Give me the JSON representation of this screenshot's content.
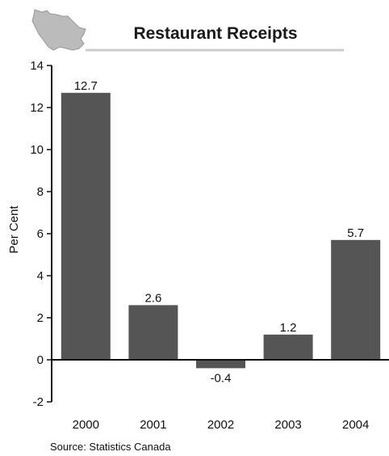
{
  "chart_data": {
    "type": "bar",
    "title": "Restaurant Receipts",
    "xlabel": "",
    "ylabel": "Per Cent",
    "categories": [
      "2000",
      "2001",
      "2002",
      "2003",
      "2004"
    ],
    "values": [
      12.7,
      2.6,
      -0.4,
      1.2,
      5.7
    ],
    "data_labels": [
      "12.7",
      "2.6",
      "-0.4",
      "1.2",
      "5.7"
    ],
    "ylim": [
      -2,
      14
    ],
    "yticks": [
      -2,
      0,
      2,
      4,
      6,
      8,
      10,
      12,
      14
    ],
    "ytick_labels": [
      "-2",
      "0",
      "2",
      "4",
      "6",
      "8",
      "10",
      "12",
      "14"
    ],
    "grid": false,
    "legend": "none",
    "bar_color": "#555555",
    "source": "Source: Statistics Canada"
  },
  "logo": {
    "icon": "new-brunswick-map-icon",
    "color": "#bbbbbb"
  }
}
